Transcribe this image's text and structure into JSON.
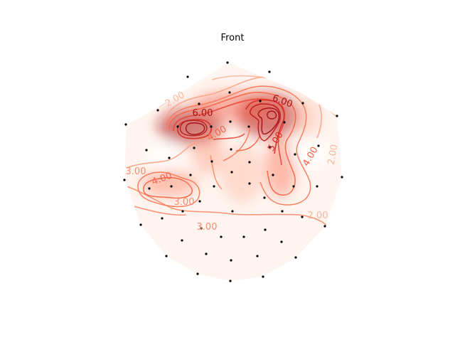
{
  "chart_data": {
    "type": "heatmap",
    "title": "Front",
    "colormap": "Reds",
    "contour_levels": [
      1,
      1.5,
      2,
      2.5,
      3,
      3.5,
      4,
      4.5,
      5,
      5.5,
      6,
      6.5
    ],
    "contour_labels": [
      {
        "text": "2.00",
        "value": 2
      },
      {
        "text": "6.00",
        "value": 6
      },
      {
        "text": "6.00",
        "value": 6
      },
      {
        "text": "4.00",
        "value": 4
      },
      {
        "text": "5.00",
        "value": 5
      },
      {
        "text": "3.00",
        "value": 3
      },
      {
        "text": "4.00",
        "value": 4
      },
      {
        "text": "3.00",
        "value": 3
      },
      {
        "text": "2.00",
        "value": 2
      },
      {
        "text": "2.00",
        "value": 2
      },
      {
        "text": "4.00",
        "value": 4
      },
      {
        "text": "3.00",
        "value": 3
      }
    ],
    "grid": false,
    "axes_visible": false,
    "legend": false
  }
}
